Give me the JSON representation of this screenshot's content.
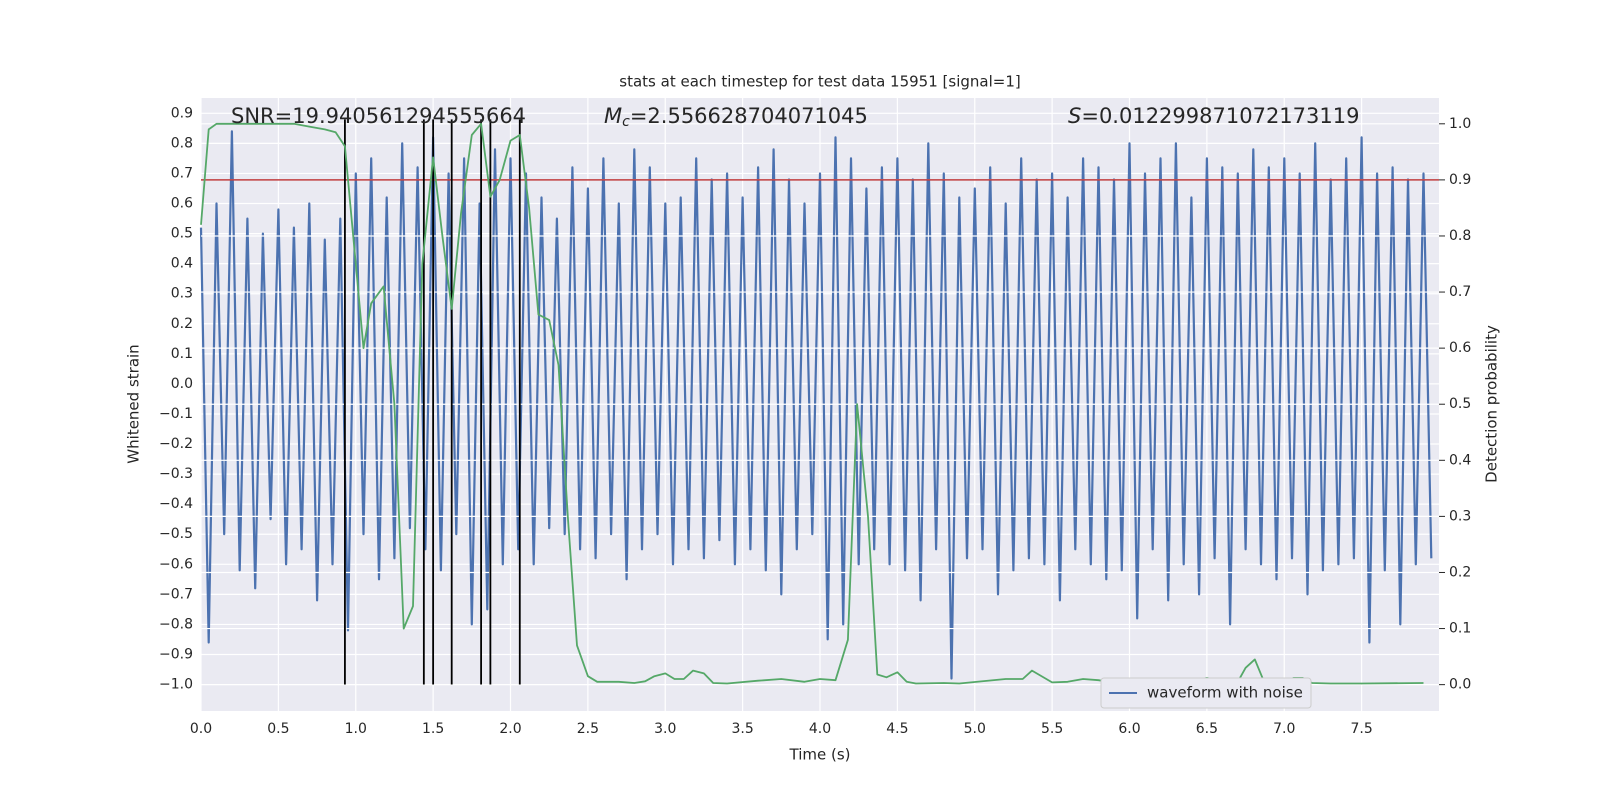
{
  "chart_data": {
    "type": "line",
    "title": "stats at each timestep for test data 15951 [signal=1]",
    "xlabel": "Time (s)",
    "ylabel": "Whitened strain",
    "y2label": "Detection probability",
    "xlim": [
      0,
      8.0
    ],
    "ylim": [
      -1.088,
      0.951
    ],
    "y2lim": [
      -0.047,
      1.046
    ],
    "grid": true,
    "background": "#eaeaf2",
    "xticks": [
      {
        "value": 0,
        "label": "0.0"
      },
      0.5,
      {
        "value": 1,
        "label": "1.0"
      },
      1.5,
      {
        "value": 2,
        "label": "2.0"
      },
      2.5,
      {
        "value": 3,
        "label": "3.0"
      },
      3.5,
      {
        "value": 4,
        "label": "4.0"
      },
      4.5,
      {
        "value": 5,
        "label": "5.0"
      },
      5.5,
      {
        "value": 6,
        "label": "6.0"
      },
      6.5,
      {
        "value": 7,
        "label": "7.0"
      },
      7.5
    ],
    "yticks": [
      {
        "value": -1.0,
        "label": "−1.0"
      },
      {
        "value": -0.9,
        "label": "−0.9"
      },
      {
        "value": -0.8,
        "label": "−0.8"
      },
      {
        "value": -0.7,
        "label": "−0.7"
      },
      {
        "value": -0.6,
        "label": "−0.6"
      },
      {
        "value": -0.5,
        "label": "−0.5"
      },
      {
        "value": -0.4,
        "label": "−0.4"
      },
      {
        "value": -0.3,
        "label": "−0.3"
      },
      {
        "value": -0.2,
        "label": "−0.2"
      },
      {
        "value": -0.1,
        "label": "−0.1"
      },
      {
        "value": 0,
        "label": "0.0"
      },
      0.1,
      0.2,
      0.3,
      0.4,
      0.5,
      0.6,
      0.7,
      0.8,
      0.9
    ],
    "y2ticks": [
      {
        "value": 0,
        "label": "0.0"
      },
      0.1,
      0.2,
      0.3,
      0.4,
      0.5,
      0.6,
      0.7,
      0.8,
      0.9,
      {
        "value": 1,
        "label": "1.0"
      }
    ],
    "annotations": [
      {
        "text": "SNR=19.940561294555664"
      },
      {
        "symbol": "M",
        "subscript": "c",
        "text": "=2.556628704071045"
      },
      {
        "symbol": "S",
        "text": "=0.012299871072173119"
      }
    ],
    "legend": "lower right",
    "threshold": {
      "value": 0.9,
      "axis": "y2",
      "color": "#c03d3e"
    },
    "vlines": {
      "color": "#000000",
      "x": [
        0.93,
        1.44,
        1.5,
        1.62,
        1.81,
        1.87,
        2.06
      ],
      "ymin": -1.0,
      "ymax": 0.88
    },
    "series": [
      {
        "name": "waveform with noise",
        "color": "#4c72b0",
        "x": [
          0,
          0.05,
          0.1,
          0.15,
          0.2,
          0.25,
          0.3,
          0.35,
          0.4,
          0.45,
          0.5,
          0.55,
          0.6,
          0.65,
          0.7,
          0.75,
          0.8,
          0.85,
          0.9,
          0.95,
          1,
          1.05,
          1.1,
          1.15,
          1.2,
          1.25,
          1.3,
          1.35,
          1.4,
          1.45,
          1.5,
          1.55,
          1.6,
          1.65,
          1.7,
          1.75,
          1.8,
          1.85,
          1.9,
          1.95,
          2,
          2.05,
          2.1,
          2.15,
          2.2,
          2.25,
          2.3,
          2.35,
          2.4,
          2.45,
          2.5,
          2.55,
          2.6,
          2.65,
          2.7,
          2.75,
          2.8,
          2.85,
          2.9,
          2.95,
          3,
          3.05,
          3.1,
          3.15,
          3.2,
          3.25,
          3.3,
          3.35,
          3.4,
          3.45,
          3.5,
          3.55,
          3.6,
          3.65,
          3.7,
          3.75,
          3.8,
          3.85,
          3.9,
          3.95,
          4,
          4.05,
          4.1,
          4.15,
          4.2,
          4.25,
          4.3,
          4.35,
          4.4,
          4.45,
          4.5,
          4.55,
          4.6,
          4.65,
          4.7,
          4.75,
          4.8,
          4.85,
          4.9,
          4.95,
          5,
          5.05,
          5.1,
          5.15,
          5.2,
          5.25,
          5.3,
          5.35,
          5.4,
          5.45,
          5.5,
          5.55,
          5.6,
          5.65,
          5.7,
          5.75,
          5.8,
          5.85,
          5.9,
          5.95,
          6,
          6.05,
          6.1,
          6.15,
          6.2,
          6.25,
          6.3,
          6.35,
          6.4,
          6.45,
          6.5,
          6.55,
          6.6,
          6.65,
          6.7,
          6.75,
          6.8,
          6.85,
          6.9,
          6.95,
          7,
          7.05,
          7.1,
          7.15,
          7.2,
          7.25,
          7.3,
          7.35,
          7.4,
          7.45,
          7.5,
          7.55,
          7.6,
          7.65,
          7.7,
          7.75,
          7.8,
          7.85,
          7.9,
          7.95
        ],
        "values": [
          0.52,
          -0.86,
          0.6,
          -0.5,
          0.84,
          -0.62,
          0.55,
          -0.68,
          0.5,
          -0.45,
          0.58,
          -0.6,
          0.52,
          -0.55,
          0.6,
          -0.72,
          0.48,
          -0.6,
          0.55,
          -0.82,
          0.7,
          -0.5,
          0.75,
          -0.65,
          0.62,
          -0.58,
          0.8,
          -0.48,
          0.72,
          -0.55,
          0.82,
          -0.62,
          0.7,
          -0.5,
          0.75,
          -0.8,
          0.6,
          -0.75,
          0.78,
          -0.6,
          0.75,
          -0.55,
          0.7,
          -0.6,
          0.62,
          -0.48,
          0.55,
          -0.5,
          0.72,
          -0.55,
          0.65,
          -0.58,
          0.75,
          -0.5,
          0.6,
          -0.65,
          0.78,
          -0.55,
          0.72,
          -0.5,
          0.6,
          -0.6,
          0.62,
          -0.55,
          0.75,
          -0.58,
          0.68,
          -0.52,
          0.7,
          -0.6,
          0.62,
          -0.55,
          0.72,
          -0.62,
          0.78,
          -0.7,
          0.68,
          -0.55,
          0.6,
          -0.5,
          0.7,
          -0.85,
          0.82,
          -0.8,
          0.75,
          -0.6,
          0.65,
          -0.55,
          0.72,
          -0.6,
          0.75,
          -0.62,
          0.68,
          -0.72,
          0.8,
          -0.55,
          0.7,
          -0.98,
          0.62,
          -0.58,
          0.65,
          -0.55,
          0.72,
          -0.7,
          0.6,
          -0.62,
          0.75,
          -0.58,
          0.68,
          -0.6,
          0.7,
          -0.72,
          0.62,
          -0.55,
          0.75,
          -0.6,
          0.72,
          -0.65,
          0.68,
          -0.62,
          0.8,
          -0.78,
          0.7,
          -0.55,
          0.75,
          -0.72,
          0.8,
          -0.6,
          0.62,
          -0.7,
          0.75,
          -0.58,
          0.72,
          -0.8,
          0.7,
          -0.55,
          0.78,
          -0.6,
          0.72,
          -0.65,
          0.75,
          -0.58,
          0.7,
          -0.7,
          0.8,
          -0.62,
          0.68,
          -0.6,
          0.75,
          -0.58,
          0.82,
          -0.86,
          0.7,
          -0.62,
          0.72,
          -0.8,
          0.68,
          -0.6,
          0.7,
          -0.58
        ]
      },
      {
        "color": "#55a868",
        "axis": "y2",
        "x": [
          0,
          0.05,
          0.1,
          0.2,
          0.6,
          0.7,
          0.8,
          0.87,
          0.93,
          1.0,
          1.05,
          1.1,
          1.18,
          1.25,
          1.31,
          1.37,
          1.43,
          1.5,
          1.56,
          1.62,
          1.68,
          1.75,
          1.81,
          1.87,
          1.93,
          2.0,
          2.06,
          2.12,
          2.18,
          2.25,
          2.31,
          2.37,
          2.43,
          2.5,
          2.56,
          2.7,
          2.8,
          2.87,
          2.93,
          3.0,
          3.06,
          3.12,
          3.18,
          3.25,
          3.31,
          3.4,
          3.6,
          3.75,
          3.9,
          4.0,
          4.1,
          4.18,
          4.24,
          4.31,
          4.37,
          4.43,
          4.5,
          4.56,
          4.62,
          4.8,
          4.9,
          5.2,
          5.31,
          5.37,
          5.5,
          5.6,
          5.7,
          5.8,
          5.93,
          6.2,
          6.4,
          6.5,
          6.56,
          6.7,
          6.75,
          6.81,
          6.87,
          6.93,
          7.0,
          7.06,
          7.12,
          7.18,
          7.3,
          7.5,
          7.9
        ],
        "values": [
          0.82,
          0.99,
          1.0,
          1.0,
          1.0,
          0.995,
          0.99,
          0.985,
          0.96,
          0.75,
          0.6,
          0.68,
          0.71,
          0.5,
          0.1,
          0.14,
          0.75,
          0.94,
          0.8,
          0.67,
          0.84,
          0.98,
          1.0,
          0.87,
          0.9,
          0.97,
          0.98,
          0.85,
          0.66,
          0.65,
          0.57,
          0.3,
          0.07,
          0.015,
          0.005,
          0.005,
          0.003,
          0.006,
          0.015,
          0.02,
          0.01,
          0.01,
          0.025,
          0.02,
          0.003,
          0.002,
          0.007,
          0.01,
          0.005,
          0.01,
          0.008,
          0.08,
          0.5,
          0.3,
          0.018,
          0.013,
          0.022,
          0.005,
          0.002,
          0.003,
          0.002,
          0.01,
          0.01,
          0.025,
          0.004,
          0.005,
          0.01,
          0.008,
          0.002,
          0.0,
          0.005,
          0.012,
          0.008,
          0.005,
          0.03,
          0.045,
          0.005,
          0.003,
          0.005,
          0.012,
          0.012,
          0.003,
          0.002,
          0.002,
          0.003
        ]
      }
    ]
  }
}
